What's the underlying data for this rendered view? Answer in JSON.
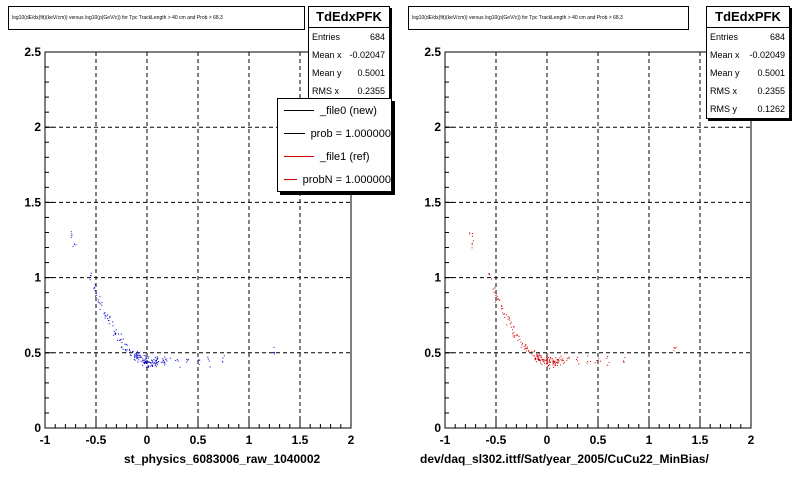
{
  "panels": [
    {
      "title": "log10(dE/dx(fit)(keV/cm)) versus log10(p(GeV/c)) for Tpc TrackLength > 40 cm and Prob > 68.3",
      "stats": {
        "name": "TdEdxPFK",
        "rows": [
          {
            "label": "Entries",
            "value": "684"
          },
          {
            "label": "Mean x",
            "value": "-0.02047"
          },
          {
            "label": "Mean y",
            "value": "0.5001"
          },
          {
            "label": "RMS x",
            "value": "0.2355"
          }
        ]
      },
      "legend": [
        {
          "label": "_file0 (new)",
          "color": "#000000"
        },
        {
          "label": "prob = 1.000000",
          "color": "#000000"
        },
        {
          "label": "_file1 (ref)",
          "color": "#cc0000"
        },
        {
          "label": "probN = 1.000000",
          "color": "#cc0000"
        }
      ],
      "caption": "st_physics_6083006_raw_1040002"
    },
    {
      "title": "log10(dE/dx(fit)(keV/cm)) versus log10(p(GeV/c)) for Tpc TrackLength > 40 cm and Prob > 68.3",
      "stats": {
        "name": "TdEdxPFK",
        "rows": [
          {
            "label": "Entries",
            "value": "684"
          },
          {
            "label": "Mean x",
            "value": "-0.02049"
          },
          {
            "label": "Mean y",
            "value": "0.5001"
          },
          {
            "label": "RMS x",
            "value": "0.2355"
          },
          {
            "label": "RMS y",
            "value": "0.1262"
          }
        ]
      },
      "caption": "dev/daq_sl302.ittf/Sat/year_2005/CuCu22_MinBias/"
    }
  ],
  "chart_data": [
    {
      "type": "scatter",
      "title": "log10(dE/dx(fit)(keV/cm)) versus log10(p(GeV/c)) for Tpc TrackLength > 40 cm and Prob > 68.3",
      "xlabel": "st_physics_6083006_raw_1040002",
      "ylabel": "",
      "xlim": [
        -1,
        2
      ],
      "ylim": [
        0,
        2.5
      ],
      "xticks": [
        "-1",
        "-0.5",
        "0",
        "0.5",
        "1",
        "1.5",
        "2"
      ],
      "yticks": [
        "0",
        "0.5",
        "1",
        "1.5",
        "2",
        "2.5"
      ],
      "grid": true,
      "color": "#0000cc",
      "series": [
        {
          "values": [
            [
              -0.75,
              1.28
            ],
            [
              -0.72,
              1.22
            ],
            [
              -0.55,
              1.02
            ],
            [
              -0.52,
              0.93
            ],
            [
              -0.5,
              0.88
            ],
            [
              -0.48,
              0.86
            ],
            [
              -0.45,
              0.82
            ],
            [
              -0.42,
              0.76
            ],
            [
              -0.4,
              0.74
            ],
            [
              -0.38,
              0.72
            ],
            [
              -0.35,
              0.68
            ],
            [
              -0.32,
              0.64
            ],
            [
              -0.3,
              0.62
            ],
            [
              -0.28,
              0.6
            ],
            [
              -0.25,
              0.56
            ],
            [
              -0.22,
              0.55
            ],
            [
              -0.2,
              0.54
            ],
            [
              -0.18,
              0.52
            ],
            [
              -0.15,
              0.5
            ],
            [
              -0.12,
              0.48
            ],
            [
              -0.1,
              0.47
            ],
            [
              -0.08,
              0.47
            ],
            [
              -0.05,
              0.46
            ],
            [
              -0.02,
              0.45
            ],
            [
              0.0,
              0.45
            ],
            [
              0.02,
              0.44
            ],
            [
              0.05,
              0.44
            ],
            [
              0.08,
              0.44
            ],
            [
              0.1,
              0.45
            ],
            [
              0.15,
              0.45
            ],
            [
              0.2,
              0.45
            ],
            [
              0.3,
              0.45
            ],
            [
              0.4,
              0.45
            ],
            [
              0.5,
              0.45
            ],
            [
              0.6,
              0.45
            ],
            [
              0.75,
              0.47
            ],
            [
              1.25,
              0.52
            ]
          ]
        }
      ]
    },
    {
      "type": "scatter",
      "title": "log10(dE/dx(fit)(keV/cm)) versus log10(p(GeV/c)) for Tpc TrackLength > 40 cm and Prob > 68.3",
      "xlabel": "dev/daq_sl302.ittf/Sat/year_2005/CuCu22_MinBias/",
      "ylabel": "",
      "xlim": [
        -1,
        2
      ],
      "ylim": [
        0,
        2.5
      ],
      "xticks": [
        "-1",
        "-0.5",
        "0",
        "0.5",
        "1",
        "1.5",
        "2"
      ],
      "yticks": [
        "0",
        "0.5",
        "1",
        "1.5",
        "2",
        "2.5"
      ],
      "grid": true,
      "color": "#cc0000",
      "series": [
        {
          "values": [
            [
              -0.75,
              1.28
            ],
            [
              -0.72,
              1.22
            ],
            [
              -0.55,
              1.02
            ],
            [
              -0.52,
              0.93
            ],
            [
              -0.5,
              0.88
            ],
            [
              -0.48,
              0.86
            ],
            [
              -0.45,
              0.82
            ],
            [
              -0.42,
              0.76
            ],
            [
              -0.4,
              0.74
            ],
            [
              -0.38,
              0.72
            ],
            [
              -0.35,
              0.68
            ],
            [
              -0.32,
              0.64
            ],
            [
              -0.3,
              0.62
            ],
            [
              -0.28,
              0.6
            ],
            [
              -0.25,
              0.56
            ],
            [
              -0.22,
              0.55
            ],
            [
              -0.2,
              0.54
            ],
            [
              -0.18,
              0.52
            ],
            [
              -0.15,
              0.5
            ],
            [
              -0.12,
              0.48
            ],
            [
              -0.1,
              0.47
            ],
            [
              -0.08,
              0.47
            ],
            [
              -0.05,
              0.46
            ],
            [
              -0.02,
              0.45
            ],
            [
              0.0,
              0.45
            ],
            [
              0.02,
              0.44
            ],
            [
              0.05,
              0.44
            ],
            [
              0.08,
              0.44
            ],
            [
              0.1,
              0.45
            ],
            [
              0.15,
              0.45
            ],
            [
              0.2,
              0.45
            ],
            [
              0.3,
              0.45
            ],
            [
              0.4,
              0.45
            ],
            [
              0.5,
              0.45
            ],
            [
              0.6,
              0.45
            ],
            [
              0.75,
              0.47
            ],
            [
              1.25,
              0.52
            ]
          ]
        }
      ]
    }
  ]
}
